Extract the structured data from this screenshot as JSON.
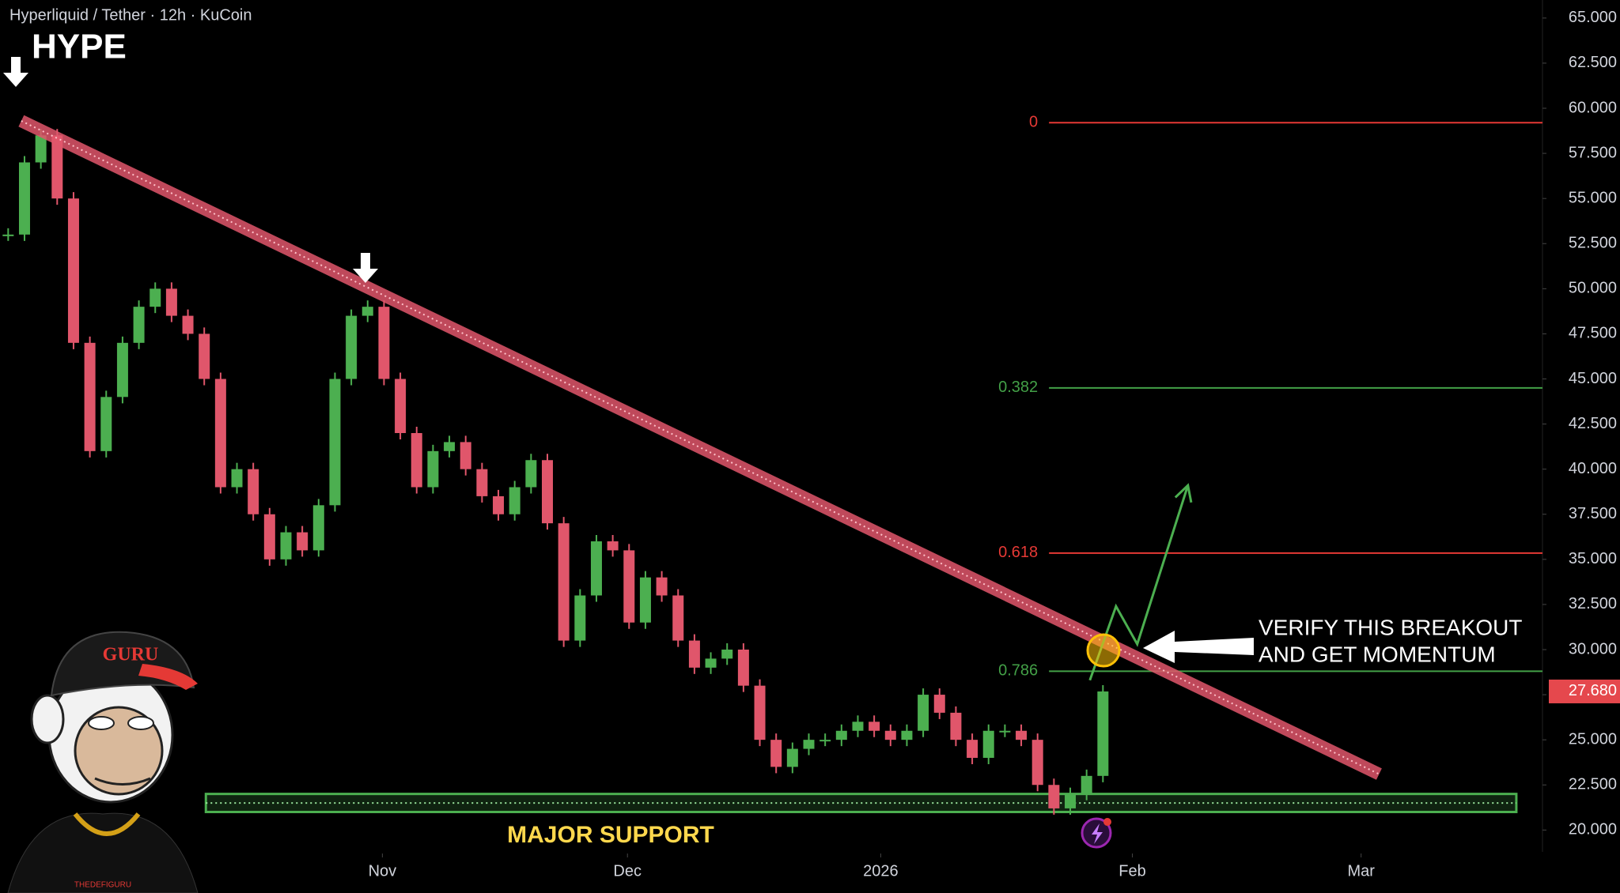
{
  "chart_data": {
    "type": "candlestick",
    "title": "Hyperliquid / Tether · 12h · KuCoin",
    "symbol": "HYPE",
    "xlim": [
      -0.5,
      93.9
    ],
    "ylim": [
      18.7,
      66
    ],
    "xticks": [
      {
        "value": 22.9,
        "label": "Nov"
      },
      {
        "value": 37.9,
        "label": "Dec"
      },
      {
        "value": 53.4,
        "label": "2026"
      },
      {
        "value": 68.8,
        "label": "Feb"
      },
      {
        "value": 82.8,
        "label": "Mar"
      }
    ],
    "yticks": [
      {
        "value": 20,
        "label": "20.000"
      },
      {
        "value": 22.5,
        "label": "22.500"
      },
      {
        "value": 25,
        "label": "25.000"
      },
      {
        "value": 27.5,
        "label": "27.500"
      },
      {
        "value": 30,
        "label": "30.000"
      },
      {
        "value": 32.5,
        "label": "32.500"
      },
      {
        "value": 35,
        "label": "35.000"
      },
      {
        "value": 37.5,
        "label": "37.500"
      },
      {
        "value": 40,
        "label": "40.000"
      },
      {
        "value": 42.5,
        "label": "42.500"
      },
      {
        "value": 45,
        "label": "45.000"
      },
      {
        "value": 47.5,
        "label": "47.500"
      },
      {
        "value": 50,
        "label": "50.000"
      },
      {
        "value": 52.5,
        "label": "52.500"
      },
      {
        "value": 55,
        "label": "55.000"
      },
      {
        "value": 57.5,
        "label": "57.500"
      },
      {
        "value": 60,
        "label": "60.000"
      },
      {
        "value": 62.5,
        "label": "62.500"
      },
      {
        "value": 65,
        "label": "65.000"
      }
    ],
    "series": [
      {
        "up_color": "#4caf50",
        "down_color": "#e0566b",
        "values": [
          53,
          57,
          58.5,
          55,
          47,
          41,
          44,
          47,
          49,
          50,
          48.5,
          47.5,
          45,
          39,
          40,
          37.5,
          35,
          36.5,
          35.5,
          38,
          45,
          48.5,
          49,
          45,
          42,
          39,
          41,
          41.5,
          40,
          38.5,
          37.5,
          39,
          40.5,
          37,
          30.5,
          33,
          36,
          35.5,
          31.5,
          34,
          33,
          30.5,
          29,
          29.5,
          30,
          28,
          25,
          23.5,
          24.5,
          25,
          25,
          25.5,
          26,
          25.5,
          25,
          25.5,
          27.5,
          26.5,
          25,
          24,
          25.5,
          25.5,
          25,
          22.5,
          21.2,
          22,
          23,
          27.68
        ]
      }
    ],
    "last_price": {
      "value": 27.68,
      "label": "27.680",
      "color": "#e5484d"
    },
    "fib_levels": [
      {
        "level": 0,
        "price": 59.2,
        "color": "#e53935"
      },
      {
        "level": 0.382,
        "price": 44.5,
        "color": "#43a047"
      },
      {
        "level": 0.618,
        "price": 35.35,
        "color": "#e53935"
      },
      {
        "level": 0.786,
        "price": 28.8,
        "color": "#43a047"
      }
    ],
    "fib_x": [
      63.7,
      93.9
    ],
    "trendline": {
      "x": [
        0.8,
        83.9
      ],
      "values": [
        59.3,
        23.1
      ],
      "color": "#e0566b"
    },
    "support": {
      "x": [
        12.1,
        92.3
      ],
      "values": [
        21,
        22
      ],
      "color": "#4caf50",
      "label": "MAJOR SUPPORT"
    },
    "projection": {
      "x": [
        66.2,
        67.8,
        69.1,
        72.2
      ],
      "values": [
        28.3,
        32.4,
        30.3,
        39.1
      ],
      "color": "#4caf50"
    },
    "annotation": [
      "VERIFY THIS BREAKOUT",
      "AND GET MOMENTUM"
    ],
    "logo": {
      "cap": "GURU",
      "caption": "THEDEFIGURU"
    }
  }
}
